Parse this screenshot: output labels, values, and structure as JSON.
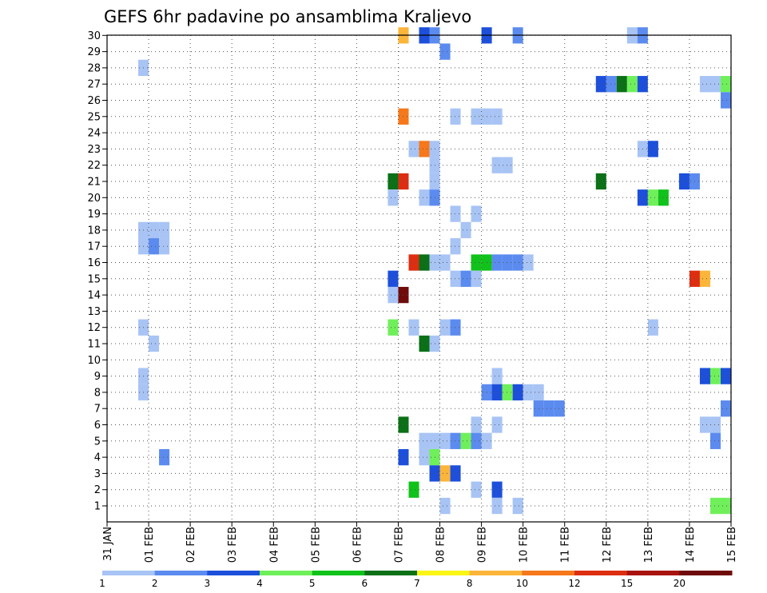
{
  "chart_data": {
    "type": "heatmap",
    "title": "GEFS 6hr padavine po ansamblima Kraljevo",
    "xlabel": "",
    "ylabel": "",
    "x_tick_labels": [
      "31 JAN",
      "01 FEB",
      "02 FEB",
      "03 FEB",
      "04 FEB",
      "05 FEB",
      "06 FEB",
      "07 FEB",
      "08 FEB",
      "09 FEB",
      "10 FEB",
      "11 FEB",
      "12 FEB",
      "13 FEB",
      "14 FEB",
      "15 FEB"
    ],
    "y_tick_labels": [
      "1",
      "2",
      "3",
      "4",
      "5",
      "6",
      "7",
      "8",
      "9",
      "10",
      "11",
      "12",
      "13",
      "14",
      "15",
      "16",
      "17",
      "18",
      "19",
      "20",
      "21",
      "22",
      "23",
      "24",
      "25",
      "26",
      "27",
      "28",
      "29",
      "30"
    ],
    "x_step": "6hr",
    "grid": true,
    "colorbar": {
      "labels": [
        "1",
        "2",
        "3",
        "4",
        "5",
        "6",
        "7",
        "8",
        "10",
        "12",
        "15",
        "20"
      ],
      "colors": [
        "#a8c4f5",
        "#5b8bef",
        "#1d4fdb",
        "#6ff05a",
        "#10c21a",
        "#0b7016",
        "#fbf516",
        "#fbb53a",
        "#f6781a",
        "#dd2e12",
        "#a8130f",
        "#6f0b0b"
      ]
    },
    "cells": [
      {
        "member": 30,
        "step": 29,
        "level": 8
      },
      {
        "member": 30,
        "step": 31,
        "level": 3
      },
      {
        "member": 30,
        "step": 32,
        "level": 2
      },
      {
        "member": 30,
        "step": 37,
        "level": 3
      },
      {
        "member": 30,
        "step": 40,
        "level": 2
      },
      {
        "member": 30,
        "step": 51,
        "level": 1
      },
      {
        "member": 30,
        "step": 52,
        "level": 2
      },
      {
        "member": 30,
        "step": 62,
        "level": 1
      },
      {
        "member": 30,
        "step": 65,
        "level": 1
      },
      {
        "member": 29,
        "step": 33,
        "level": 2
      },
      {
        "member": 28,
        "step": 4,
        "level": 1
      },
      {
        "member": 28,
        "step": 65,
        "level": 2
      },
      {
        "member": 27,
        "step": 48,
        "level": 3
      },
      {
        "member": 27,
        "step": 49,
        "level": 2
      },
      {
        "member": 27,
        "step": 50,
        "level": 6
      },
      {
        "member": 27,
        "step": 51,
        "level": 4
      },
      {
        "member": 27,
        "step": 52,
        "level": 3
      },
      {
        "member": 27,
        "step": 58,
        "level": 1
      },
      {
        "member": 27,
        "step": 59,
        "level": 1
      },
      {
        "member": 27,
        "step": 60,
        "level": 4
      },
      {
        "member": 27,
        "step": 62,
        "level": 6
      },
      {
        "member": 26,
        "step": 60,
        "level": 2
      },
      {
        "member": 26,
        "step": 62,
        "level": 4
      },
      {
        "member": 26,
        "step": 63,
        "level": 1
      },
      {
        "member": 26,
        "step": 64,
        "level": 1
      },
      {
        "member": 25,
        "step": 29,
        "level": 10
      },
      {
        "member": 25,
        "step": 34,
        "level": 1
      },
      {
        "member": 25,
        "step": 36,
        "level": 1
      },
      {
        "member": 25,
        "step": 37,
        "level": 1
      },
      {
        "member": 25,
        "step": 38,
        "level": 1
      },
      {
        "member": 23,
        "step": 30,
        "level": 1
      },
      {
        "member": 23,
        "step": 31,
        "level": 10
      },
      {
        "member": 23,
        "step": 32,
        "level": 1
      },
      {
        "member": 23,
        "step": 52,
        "level": 1
      },
      {
        "member": 23,
        "step": 53,
        "level": 3
      },
      {
        "member": 23,
        "step": 63,
        "level": 2
      },
      {
        "member": 23,
        "step": 64,
        "level": 3
      },
      {
        "member": 23,
        "step": 65,
        "level": 5
      },
      {
        "member": 22,
        "step": 32,
        "level": 1
      },
      {
        "member": 22,
        "step": 38,
        "level": 1
      },
      {
        "member": 22,
        "step": 39,
        "level": 1
      },
      {
        "member": 21,
        "step": 28,
        "level": 6
      },
      {
        "member": 21,
        "step": 29,
        "level": 12
      },
      {
        "member": 21,
        "step": 32,
        "level": 1
      },
      {
        "member": 21,
        "step": 48,
        "level": 6
      },
      {
        "member": 21,
        "step": 56,
        "level": 3
      },
      {
        "member": 21,
        "step": 57,
        "level": 2
      },
      {
        "member": 21,
        "step": 65,
        "level": 2
      },
      {
        "member": 20,
        "step": 28,
        "level": 1
      },
      {
        "member": 20,
        "step": 31,
        "level": 1
      },
      {
        "member": 20,
        "step": 32,
        "level": 2
      },
      {
        "member": 20,
        "step": 52,
        "level": 3
      },
      {
        "member": 20,
        "step": 53,
        "level": 4
      },
      {
        "member": 20,
        "step": 54,
        "level": 5
      },
      {
        "member": 20,
        "step": 63,
        "level": 1
      },
      {
        "member": 20,
        "step": 64,
        "level": 2
      },
      {
        "member": 19,
        "step": 34,
        "level": 1
      },
      {
        "member": 19,
        "step": 36,
        "level": 1
      },
      {
        "member": 18,
        "step": 4,
        "level": 1
      },
      {
        "member": 18,
        "step": 5,
        "level": 1
      },
      {
        "member": 18,
        "step": 6,
        "level": 1
      },
      {
        "member": 18,
        "step": 35,
        "level": 1
      },
      {
        "member": 17,
        "step": 4,
        "level": 1
      },
      {
        "member": 17,
        "step": 5,
        "level": 2
      },
      {
        "member": 17,
        "step": 6,
        "level": 1
      },
      {
        "member": 17,
        "step": 34,
        "level": 1
      },
      {
        "member": 16,
        "step": 30,
        "level": 12
      },
      {
        "member": 16,
        "step": 31,
        "level": 6
      },
      {
        "member": 16,
        "step": 32,
        "level": 1
      },
      {
        "member": 16,
        "step": 33,
        "level": 1
      },
      {
        "member": 16,
        "step": 36,
        "level": 5
      },
      {
        "member": 16,
        "step": 37,
        "level": 5
      },
      {
        "member": 16,
        "step": 38,
        "level": 2
      },
      {
        "member": 16,
        "step": 39,
        "level": 2
      },
      {
        "member": 16,
        "step": 40,
        "level": 2
      },
      {
        "member": 16,
        "step": 41,
        "level": 1
      },
      {
        "member": 16,
        "step": 63,
        "level": 2
      },
      {
        "member": 16,
        "step": 64,
        "level": 1
      },
      {
        "member": 15,
        "step": 28,
        "level": 3
      },
      {
        "member": 15,
        "step": 34,
        "level": 1
      },
      {
        "member": 15,
        "step": 35,
        "level": 2
      },
      {
        "member": 15,
        "step": 36,
        "level": 1
      },
      {
        "member": 15,
        "step": 57,
        "level": 12
      },
      {
        "member": 15,
        "step": 58,
        "level": 8
      },
      {
        "member": 14,
        "step": 28,
        "level": 1
      },
      {
        "member": 14,
        "step": 29,
        "level": 20
      },
      {
        "member": 12,
        "step": 28,
        "level": 4
      },
      {
        "member": 12,
        "step": 30,
        "level": 1
      },
      {
        "member": 12,
        "step": 33,
        "level": 1
      },
      {
        "member": 12,
        "step": 34,
        "level": 2
      },
      {
        "member": 12,
        "step": 4,
        "level": 1
      },
      {
        "member": 12,
        "step": 53,
        "level": 1
      },
      {
        "member": 11,
        "step": 5,
        "level": 1
      },
      {
        "member": 11,
        "step": 31,
        "level": 6
      },
      {
        "member": 11,
        "step": 32,
        "level": 1
      },
      {
        "member": 9,
        "step": 4,
        "level": 1
      },
      {
        "member": 9,
        "step": 38,
        "level": 1
      },
      {
        "member": 9,
        "step": 58,
        "level": 3
      },
      {
        "member": 9,
        "step": 59,
        "level": 4
      },
      {
        "member": 9,
        "step": 60,
        "level": 3
      },
      {
        "member": 9,
        "step": 61,
        "level": 10
      },
      {
        "member": 9,
        "step": 62,
        "level": 10
      },
      {
        "member": 9,
        "step": 63,
        "level": 3
      },
      {
        "member": 8,
        "step": 4,
        "level": 1
      },
      {
        "member": 8,
        "step": 37,
        "level": 2
      },
      {
        "member": 8,
        "step": 38,
        "level": 3
      },
      {
        "member": 8,
        "step": 39,
        "level": 4
      },
      {
        "member": 8,
        "step": 40,
        "level": 3
      },
      {
        "member": 8,
        "step": 41,
        "level": 1
      },
      {
        "member": 8,
        "step": 42,
        "level": 1
      },
      {
        "member": 7,
        "step": 42,
        "level": 2
      },
      {
        "member": 7,
        "step": 43,
        "level": 2
      },
      {
        "member": 7,
        "step": 44,
        "level": 2
      },
      {
        "member": 7,
        "step": 60,
        "level": 2
      },
      {
        "member": 7,
        "step": 61,
        "level": 5
      },
      {
        "member": 7,
        "step": 62,
        "level": 3
      },
      {
        "member": 7,
        "step": 63,
        "level": 8
      },
      {
        "member": 7,
        "step": 64,
        "level": 4
      },
      {
        "member": 6,
        "step": 29,
        "level": 6
      },
      {
        "member": 6,
        "step": 36,
        "level": 1
      },
      {
        "member": 6,
        "step": 38,
        "level": 1
      },
      {
        "member": 6,
        "step": 58,
        "level": 1
      },
      {
        "member": 6,
        "step": 59,
        "level": 1
      },
      {
        "member": 5,
        "step": 31,
        "level": 1
      },
      {
        "member": 5,
        "step": 32,
        "level": 1
      },
      {
        "member": 5,
        "step": 33,
        "level": 1
      },
      {
        "member": 5,
        "step": 34,
        "level": 2
      },
      {
        "member": 5,
        "step": 35,
        "level": 4
      },
      {
        "member": 5,
        "step": 36,
        "level": 2
      },
      {
        "member": 5,
        "step": 37,
        "level": 1
      },
      {
        "member": 5,
        "step": 59,
        "level": 2
      },
      {
        "member": 5,
        "step": 64,
        "level": 1
      },
      {
        "member": 4,
        "step": 6,
        "level": 2
      },
      {
        "member": 4,
        "step": 29,
        "level": 3
      },
      {
        "member": 4,
        "step": 31,
        "level": 1
      },
      {
        "member": 4,
        "step": 32,
        "level": 4
      },
      {
        "member": 4,
        "step": 63,
        "level": 3
      },
      {
        "member": 4,
        "step": 64,
        "level": 3
      },
      {
        "member": 4,
        "step": 65,
        "level": 1
      },
      {
        "member": 3,
        "step": 32,
        "level": 3
      },
      {
        "member": 3,
        "step": 33,
        "level": 8
      },
      {
        "member": 3,
        "step": 34,
        "level": 3
      },
      {
        "member": 2,
        "step": 30,
        "level": 5
      },
      {
        "member": 2,
        "step": 36,
        "level": 1
      },
      {
        "member": 2,
        "step": 38,
        "level": 3
      },
      {
        "member": 1,
        "step": 33,
        "level": 1
      },
      {
        "member": 1,
        "step": 38,
        "level": 1
      },
      {
        "member": 1,
        "step": 40,
        "level": 1
      },
      {
        "member": 1,
        "step": 59,
        "level": 4
      },
      {
        "member": 1,
        "step": 60,
        "level": 4
      },
      {
        "member": 1,
        "step": 65,
        "level": 3
      }
    ]
  }
}
